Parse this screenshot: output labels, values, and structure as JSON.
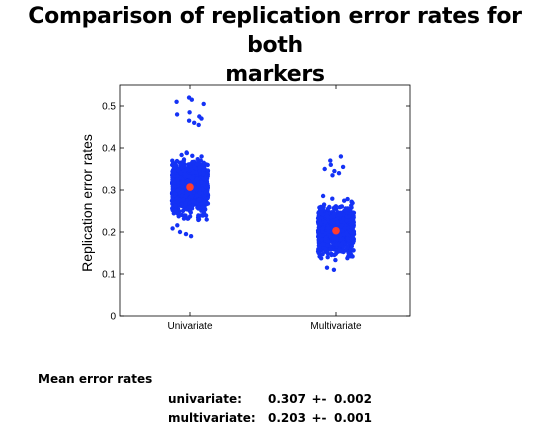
{
  "title_lines": [
    "Comparison of replication error rates for both",
    "markers"
  ],
  "chart_data": {
    "type": "scatter",
    "title": "Comparison of replication error rates for both markers",
    "xlabel": "",
    "ylabel": "Replication error rates",
    "categories": [
      "Univariate",
      "Multivariate"
    ],
    "ylim": [
      0,
      0.55
    ],
    "yticks": [
      0,
      0.1,
      0.2,
      0.3,
      0.4,
      0.5
    ],
    "ytick_labels": [
      "0",
      "0.1",
      "0.2",
      "0.3",
      "0.4",
      "0.5"
    ],
    "grid": false,
    "series": [
      {
        "category": "Univariate",
        "mean": 0.307,
        "approx_range": [
          0.19,
          0.52
        ],
        "outliers": [
          0.52,
          0.515,
          0.51,
          0.505,
          0.485,
          0.48,
          0.475,
          0.47,
          0.465,
          0.46,
          0.455,
          0.195,
          0.2,
          0.19
        ],
        "color": "#1432f5",
        "mean_marker_color": "#ff3b2f"
      },
      {
        "category": "Multivariate",
        "mean": 0.203,
        "approx_range": [
          0.11,
          0.38
        ],
        "outliers": [
          0.38,
          0.37,
          0.36,
          0.355,
          0.35,
          0.345,
          0.34,
          0.335,
          0.115,
          0.11
        ],
        "color": "#1432f5",
        "mean_marker_color": "#ff3b2f"
      }
    ]
  },
  "stats": {
    "heading": "Mean error rates",
    "rows": [
      {
        "label": "univariate:",
        "mean": "0.307",
        "pm": "+-",
        "err": "0.002"
      },
      {
        "label": "multivariate:",
        "mean": "0.203",
        "pm": "+-",
        "err": "0.001"
      }
    ]
  }
}
